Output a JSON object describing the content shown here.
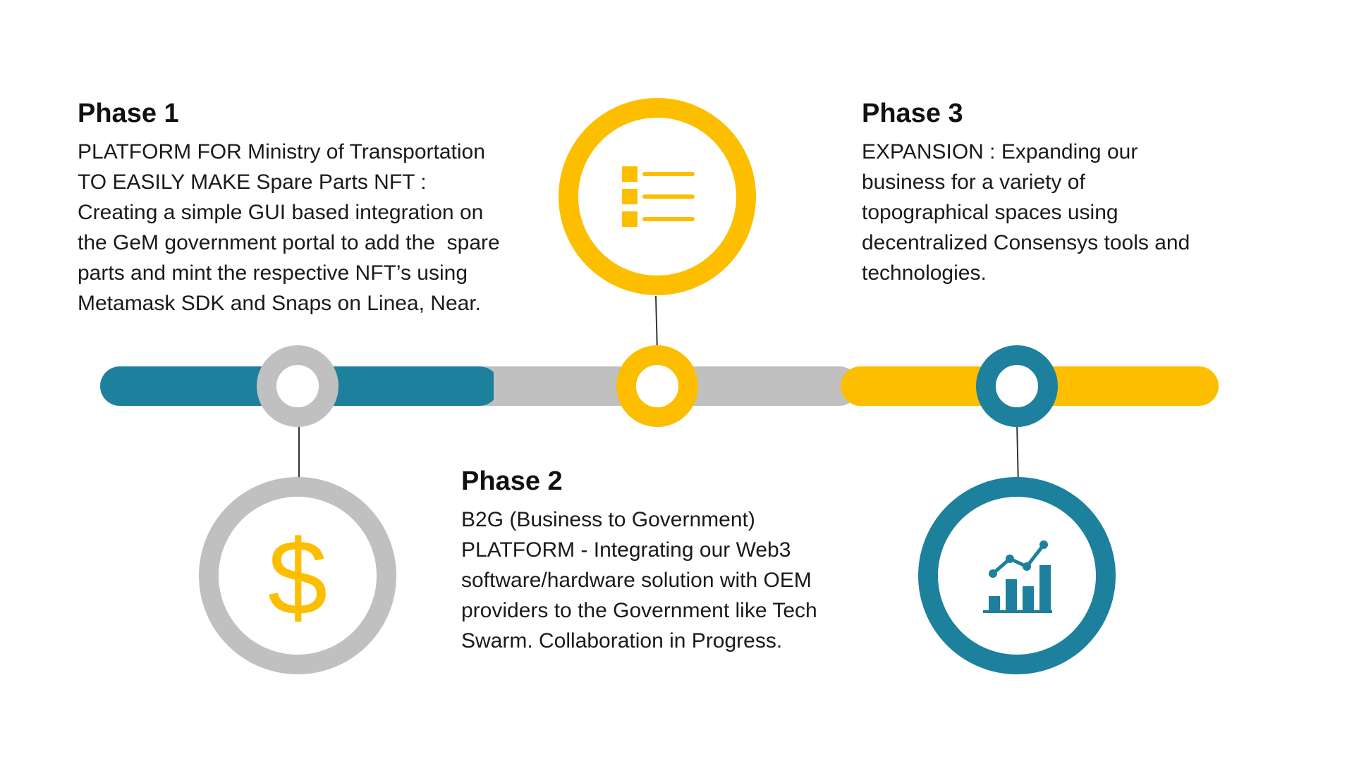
{
  "colors": {
    "teal": "#1D809D",
    "gray": "#C0C0C0",
    "yellow": "#FDBE00",
    "connector": "#333333",
    "text": "#111111"
  },
  "phases": [
    {
      "title": "Phase 1",
      "lines": [
        "PLATFORM FOR Ministry of Transportation",
        "TO EASILY MAKE Spare Parts NFT :",
        "Creating a simple GUI based integration on",
        "the GeM government portal to add the  spare",
        "parts and mint the respective NFT’s using",
        "Metamask SDK and Snaps on Linea, Near."
      ],
      "icon": "dollar-icon",
      "color": "gray"
    },
    {
      "title": "Phase 2",
      "lines": [
        "B2G (Business to Government)",
        "PLATFORM - Integrating our Web3",
        "software/hardware solution with OEM",
        "providers to the Government like Tech",
        "Swarm. Collaboration in Progress."
      ],
      "icon": "list-icon",
      "color": "yellow"
    },
    {
      "title": "Phase 3",
      "lines": [
        "EXPANSION : Expanding our",
        "business for a variety of",
        "topographical spaces using",
        "decentralized Consensys tools and",
        "technologies."
      ],
      "icon": "growth-chart-icon",
      "color": "teal"
    }
  ],
  "dollar_symbol": "$"
}
